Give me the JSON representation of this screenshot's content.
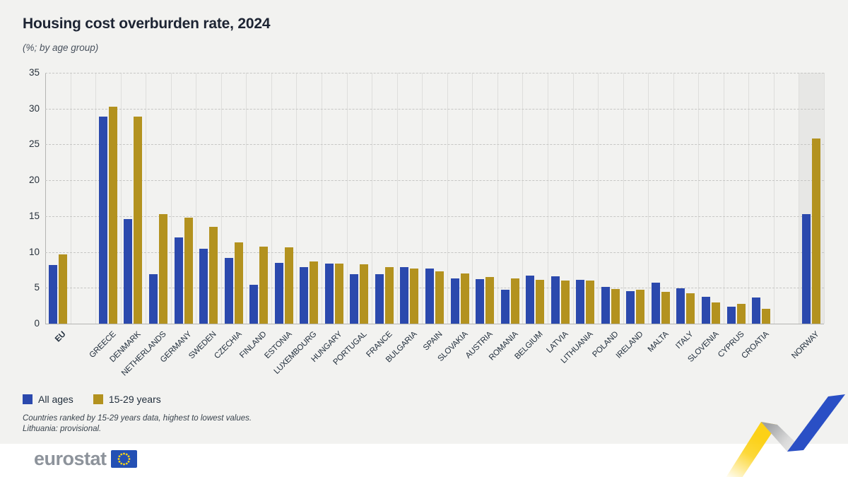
{
  "title": "Housing cost overburden rate, 2024",
  "subtitle": "(%; by age group)",
  "legend": {
    "all_ages": "All ages",
    "youth": "15-29 years"
  },
  "footnotes": [
    "Countries ranked by 15-29 years data, highest to lowest values.",
    "Lithuania: provisional."
  ],
  "logo": {
    "text": "eurostat"
  },
  "colors": {
    "background": "#f2f2f0",
    "bar_all_ages": "#2b49ad",
    "bar_youth": "#b3921f",
    "highlight_band": "#e7e7e5",
    "title_text": "#1d2433",
    "footer_background": "#ffffff",
    "ribbon_yellow": "#fcd116",
    "ribbon_blue": "#2a4fc5"
  },
  "chart_data": {
    "type": "bar",
    "title": "Housing cost overburden rate, 2024",
    "subtitle": "(%; by age group)",
    "ylabel": "%",
    "ylim": [
      0,
      35
    ],
    "yticks": [
      0,
      5,
      10,
      15,
      20,
      25,
      30,
      35
    ],
    "grid": "horizontal dashed gridlines every 5; light vertical column lines",
    "legend_position": "bottom-left",
    "categories": [
      "EU",
      "GREECE",
      "DENMARK",
      "NETHERLANDS",
      "GERMANY",
      "SWEDEN",
      "CZECHIA",
      "FINLAND",
      "ESTONIA",
      "LUXEMBOURG",
      "HUNGARY",
      "PORTUGAL",
      "FRANCE",
      "BULGARIA",
      "SPAIN",
      "SLOVAKIA",
      "AUSTRIA",
      "ROMANIA",
      "BELGIUM",
      "LATVIA",
      "LITHUANIA",
      "POLAND",
      "IRELAND",
      "MALTA",
      "ITALY",
      "SLOVENIA",
      "CYPRUS",
      "CROATIA",
      "NORWAY"
    ],
    "series": [
      {
        "name": "All ages",
        "color": "#2b49ad",
        "values": [
          8.2,
          28.9,
          14.6,
          6.9,
          12.0,
          10.5,
          9.2,
          5.4,
          8.5,
          7.9,
          8.4,
          6.9,
          6.9,
          7.9,
          7.7,
          6.3,
          6.2,
          4.7,
          6.7,
          6.6,
          6.1,
          5.1,
          4.5,
          5.7,
          4.9,
          3.7,
          2.4,
          3.6,
          15.3
        ]
      },
      {
        "name": "15-29 years",
        "color": "#b3921f",
        "values": [
          9.7,
          30.3,
          28.9,
          15.3,
          14.8,
          13.5,
          11.3,
          10.7,
          10.6,
          8.7,
          8.4,
          8.3,
          7.9,
          7.7,
          7.3,
          7.0,
          6.5,
          6.3,
          6.1,
          6.0,
          6.0,
          4.8,
          4.7,
          4.4,
          4.2,
          3.0,
          2.8,
          2.1,
          25.8
        ]
      }
    ],
    "separators_after": [
      "EU",
      "CROATIA"
    ],
    "highlighted_category": "NORWAY",
    "bold_category": "EU"
  }
}
